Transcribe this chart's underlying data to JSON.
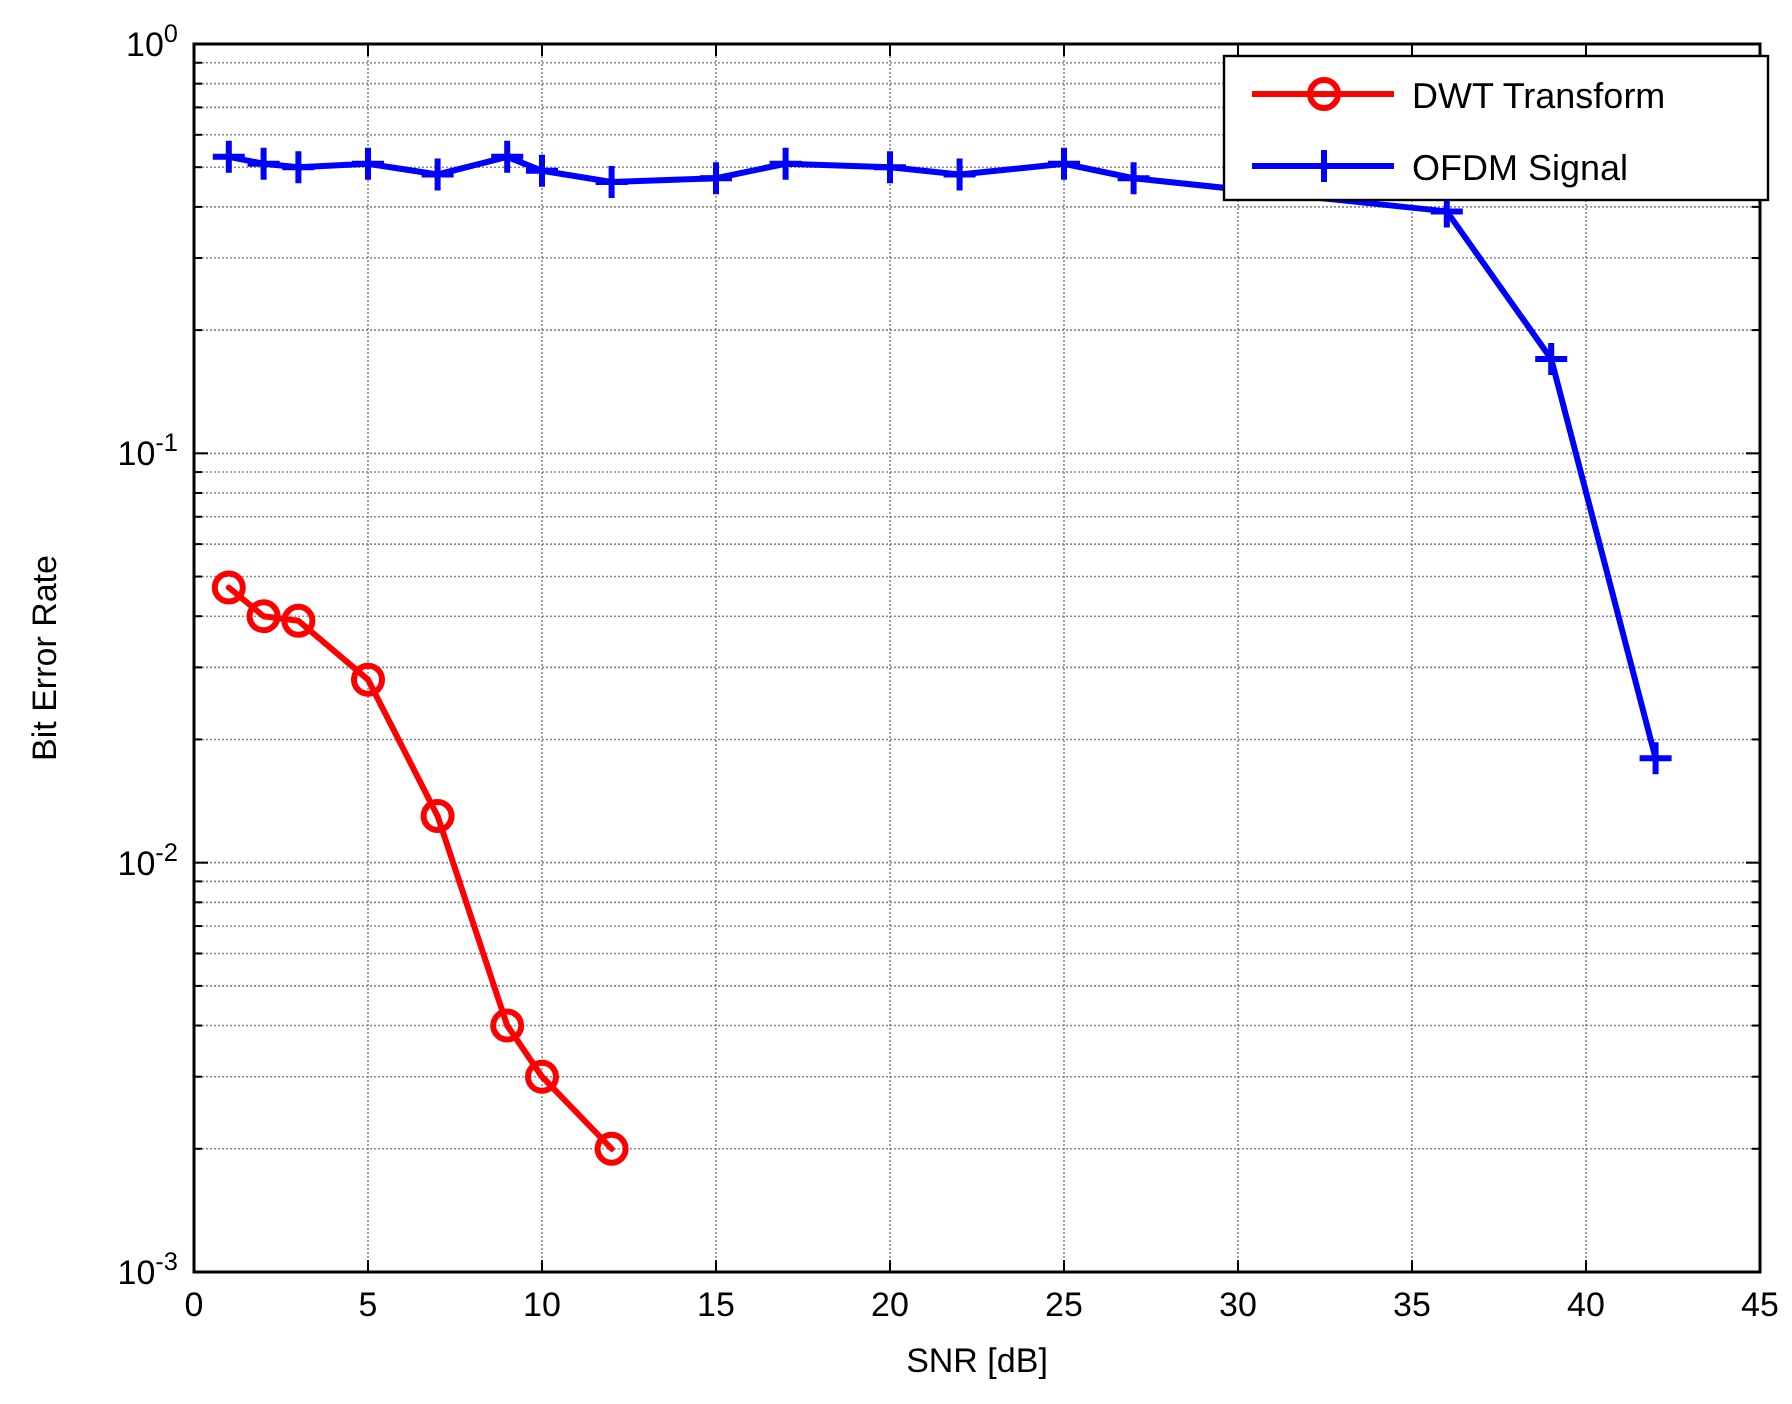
{
  "chart_data": {
    "type": "line",
    "xlabel": "SNR [dB]",
    "ylabel": "Bit Error Rate",
    "log": "y",
    "grid": true,
    "legend": "top right",
    "line_style": "solid",
    "xlim": [
      0,
      45
    ],
    "xticks": [
      0,
      5,
      10,
      15,
      20,
      25,
      30,
      35,
      40,
      45
    ],
    "ylim": [
      0.001,
      1
    ],
    "yticks": [
      {
        "value": 0.001,
        "label": "10$^{-3}$"
      },
      {
        "value": 0.002,
        "label": null
      },
      {
        "value": 0.003,
        "label": null
      },
      {
        "value": 0.004,
        "label": null
      },
      {
        "value": 0.005,
        "label": null
      },
      {
        "value": 0.006,
        "label": null
      },
      {
        "value": 0.007,
        "label": null
      },
      {
        "value": 0.008,
        "label": null
      },
      {
        "value": 0.009,
        "label": null
      },
      {
        "value": 0.01,
        "label": "10$^{-2}$"
      },
      {
        "value": 0.02,
        "label": null
      },
      {
        "value": 0.03,
        "label": null
      },
      {
        "value": 0.04,
        "label": null
      },
      {
        "value": 0.05,
        "label": null
      },
      {
        "value": 0.06,
        "label": null
      },
      {
        "value": 0.07,
        "label": null
      },
      {
        "value": 0.08,
        "label": null
      },
      {
        "value": 0.09,
        "label": null
      },
      {
        "value": 0.1,
        "label": "10$^{-1}$"
      },
      {
        "value": 0.2,
        "label": null
      },
      {
        "value": 0.3,
        "label": null
      },
      {
        "value": 0.4,
        "label": null
      },
      {
        "value": 0.5,
        "label": null
      },
      {
        "value": 0.6,
        "label": null
      },
      {
        "value": 0.7,
        "label": null
      },
      {
        "value": 0.8,
        "label": null
      },
      {
        "value": 0.9,
        "label": null
      },
      {
        "value": 1,
        "label": "10$^{0}$"
      }
    ],
    "series": [
      {
        "name": "DWT Transform",
        "color": "#ff0000",
        "marker": "circle",
        "x": [
          1,
          2,
          3,
          5,
          7,
          9,
          10,
          12
        ],
        "values": [
          0.047,
          0.04,
          0.039,
          0.028,
          0.013,
          0.004,
          0.003,
          0.002
        ]
      },
      {
        "name": "OFDM Signal",
        "color": "#0000ff",
        "marker": "cross",
        "x": [
          1,
          2,
          3,
          5,
          7,
          9,
          10,
          12,
          15,
          17,
          20,
          22,
          25,
          27,
          30,
          33,
          36,
          39,
          42
        ],
        "values": [
          0.53,
          0.51,
          0.5,
          0.51,
          0.48,
          0.53,
          0.49,
          0.46,
          0.47,
          0.51,
          0.5,
          0.48,
          0.51,
          0.47,
          null,
          null,
          0.39,
          0.17,
          0.018
        ]
      }
    ]
  }
}
